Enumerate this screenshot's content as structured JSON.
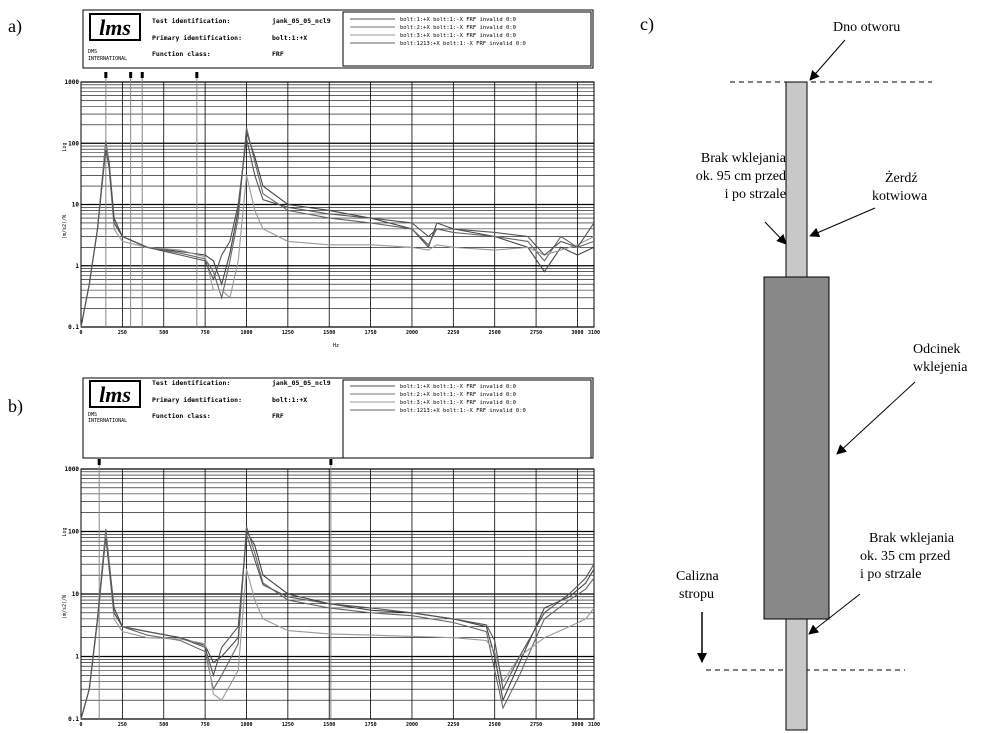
{
  "panels": [
    {
      "letter": "a)",
      "header": {
        "logo": "lms",
        "brand_line1": "DMS",
        "brand_line2": "INTERNATIONAL",
        "fields": [
          {
            "label": "Test identification:",
            "value": "jank_05_05_ncl9"
          },
          {
            "label": "Primary identification:",
            "value": "bolt:1:+X"
          },
          {
            "label": "Function class:",
            "value": "FRF"
          }
        ],
        "legend": [
          "bolt:1:+X bolt:1:-X FRF invalid 0:0",
          "bolt:2:+X bolt:1:-X FRF invalid 0:0",
          "bolt:3:+X bolt:1:-X FRF invalid 0:0",
          "bolt:1213:+X bolt:1:-X FRF invalid 0:0"
        ]
      },
      "chart_data": {
        "type": "line",
        "xlabel": "Hz",
        "ylabel": "(m/s2)/N",
        "yscale_label": "Log",
        "xlim": [
          0,
          3100
        ],
        "ylim": [
          0.1,
          1000
        ],
        "yscale": "log",
        "x_tick_labels": [
          {
            "x": 0,
            "label": "0"
          },
          {
            "x": 250,
            "label": "250"
          },
          {
            "x": 500,
            "label": "500"
          },
          {
            "x": 750,
            "label": "750"
          },
          {
            "x": 1000,
            "label": "1000"
          },
          {
            "x": 1250,
            "label": "1250"
          },
          {
            "x": 1500,
            "label": "1500"
          },
          {
            "x": 1750,
            "label": "1750"
          },
          {
            "x": 2000,
            "label": "2000"
          },
          {
            "x": 2250,
            "label": "2250"
          },
          {
            "x": 2500,
            "label": "2500"
          },
          {
            "x": 2750,
            "label": "2750"
          },
          {
            "x": 3000,
            "label": "3000"
          },
          {
            "x": 3100,
            "label": "3100"
          }
        ],
        "y_tick_labels": [
          {
            "y": 0.1,
            "label": "0.1"
          },
          {
            "y": 1,
            "label": "1"
          },
          {
            "y": 10,
            "label": "10"
          },
          {
            "y": 100,
            "label": "100"
          },
          {
            "y": 1000,
            "label": "1000"
          }
        ],
        "cursors": [
          150,
          300,
          370,
          700
        ],
        "series": [
          {
            "x": [
              0,
              50,
              100,
              150,
              170,
              200,
              250,
              400,
              600,
              750,
              800,
              850,
              900,
              950,
              1000,
              1050,
              1100,
              1250,
              1500,
              1750,
              2000,
              2100,
              2150,
              2250,
              2500,
              2700,
              2800,
              2900,
              3000,
              3100
            ],
            "y": [
              0.1,
              0.5,
              4,
              100,
              50,
              6,
              3,
              2,
              1.7,
              1.5,
              1.2,
              0.5,
              1.6,
              8,
              150,
              60,
              20,
              10,
              8,
              6,
              4,
              2,
              5,
              4,
              3,
              2,
              0.8,
              2,
              1.5,
              2
            ]
          },
          {
            "x": [
              0,
              50,
              100,
              150,
              170,
              200,
              250,
              400,
              600,
              750,
              800,
              850,
              900,
              950,
              1000,
              1050,
              1100,
              1250,
              1500,
              1750,
              2000,
              2100,
              2150,
              2250,
              2500,
              2700,
              2800,
              2900,
              3000,
              3100
            ],
            "y": [
              0.1,
              0.5,
              4,
              110,
              45,
              5,
              3,
              2,
              1.6,
              1.3,
              0.8,
              0.3,
              1.2,
              6,
              180,
              50,
              15,
              8,
              6,
              5,
              4,
              2.2,
              4,
              3.5,
              3,
              2.5,
              1.2,
              3,
              2,
              2.5
            ]
          },
          {
            "x": [
              0,
              50,
              100,
              150,
              170,
              200,
              250,
              400,
              600,
              750,
              800,
              850,
              900,
              950,
              1000,
              1050,
              1100,
              1250,
              1500,
              1750,
              2000,
              2100,
              2150,
              2250,
              2500,
              2700,
              2800,
              2900,
              3000,
              3100
            ],
            "y": [
              0.1,
              0.5,
              4,
              90,
              40,
              4,
              2.5,
              2,
              1.8,
              1.4,
              0.4,
              0.4,
              0.3,
              1.2,
              30,
              8,
              4,
              2.5,
              2.2,
              2.2,
              2,
              1.8,
              2.2,
              2,
              1.8,
              2,
              1.5,
              1.8,
              2.2,
              3
            ]
          },
          {
            "x": [
              0,
              50,
              100,
              150,
              170,
              200,
              250,
              400,
              600,
              750,
              800,
              850,
              900,
              950,
              1000,
              1050,
              1100,
              1250,
              1500,
              1750,
              2000,
              2100,
              2150,
              2250,
              2500,
              2700,
              2800,
              2900,
              3000,
              3100
            ],
            "y": [
              0.1,
              0.5,
              4,
              80,
              40,
              5,
              3,
              2,
              1.5,
              1.2,
              0.6,
              1.5,
              2.5,
              10,
              120,
              30,
              12,
              9,
              7,
              6,
              5,
              3,
              4,
              4,
              3.5,
              3,
              1.5,
              2.5,
              2,
              5
            ]
          }
        ]
      }
    },
    {
      "letter": "b)",
      "header": {
        "logo": "lms",
        "brand_line1": "DMS",
        "brand_line2": "INTERNATIONAL",
        "fields": [
          {
            "label": "Test identification:",
            "value": "jank_05_05_ncl9"
          },
          {
            "label": "Primary identification:",
            "value": "bolt:1:+X"
          },
          {
            "label": "Function class:",
            "value": "FRF"
          }
        ],
        "legend": [
          "bolt:1:+X bolt:1:-X FRF invalid 0:0",
          "bolt:2:+X bolt:1:-X FRF invalid 0:0",
          "bolt:3:+X bolt:1:-X FRF invalid 0:0",
          "bolt:1213:+X bolt:1:-X FRF invalid 0:0"
        ]
      },
      "chart_data": {
        "type": "line",
        "xlabel": "",
        "ylabel": "(m/s2)/N",
        "yscale_label": "Log",
        "xlim": [
          0,
          3100
        ],
        "ylim": [
          0.1,
          1000
        ],
        "yscale": "log",
        "x_tick_labels": [
          {
            "x": 0,
            "label": "0"
          },
          {
            "x": 250,
            "label": "250"
          },
          {
            "x": 500,
            "label": "500"
          },
          {
            "x": 750,
            "label": "750"
          },
          {
            "x": 1000,
            "label": "1000"
          },
          {
            "x": 1250,
            "label": "1250"
          },
          {
            "x": 1500,
            "label": "1500"
          },
          {
            "x": 1750,
            "label": "1750"
          },
          {
            "x": 2000,
            "label": "2000"
          },
          {
            "x": 2250,
            "label": "2250"
          },
          {
            "x": 2500,
            "label": "2500"
          },
          {
            "x": 2750,
            "label": "2750"
          },
          {
            "x": 3000,
            "label": "3000"
          },
          {
            "x": 3100,
            "label": "3100"
          }
        ],
        "y_tick_labels": [
          {
            "y": 0.1,
            "label": "0.1"
          },
          {
            "y": 1,
            "label": "1"
          },
          {
            "y": 10,
            "label": "10"
          },
          {
            "y": 100,
            "label": "100"
          },
          {
            "y": 1000,
            "label": "1000"
          }
        ],
        "cursors": [
          110,
          1510
        ],
        "series": [
          {
            "x": [
              0,
              50,
              100,
              150,
              200,
              250,
              400,
              600,
              750,
              800,
              850,
              950,
              1000,
              1050,
              1100,
              1250,
              1500,
              1750,
              2000,
              2250,
              2450,
              2500,
              2550,
              2650,
              2800,
              2950,
              3050,
              3100
            ],
            "y": [
              0.1,
              0.3,
              4,
              100,
              6,
              3,
              2.5,
              2,
              1.5,
              0.8,
              1,
              2,
              100,
              60,
              20,
              10,
              7,
              5.5,
              5,
              4,
              3,
              1,
              0.2,
              0.8,
              6,
              9,
              15,
              25
            ]
          },
          {
            "x": [
              0,
              50,
              100,
              150,
              200,
              250,
              400,
              600,
              750,
              800,
              850,
              950,
              1000,
              1050,
              1100,
              1250,
              1500,
              1750,
              2000,
              2250,
              2450,
              2500,
              2550,
              2650,
              2800,
              2950,
              3050,
              3100
            ],
            "y": [
              0.1,
              0.3,
              4,
              110,
              5,
              3,
              2.2,
              1.8,
              1.2,
              0.3,
              0.5,
              1.6,
              120,
              45,
              15,
              8,
              6,
              5,
              4.5,
              3.5,
              2.5,
              0.6,
              0.15,
              0.5,
              4,
              8,
              12,
              18
            ]
          },
          {
            "x": [
              0,
              50,
              100,
              150,
              200,
              250,
              400,
              600,
              750,
              800,
              850,
              950,
              1000,
              1050,
              1100,
              1250,
              1500,
              1750,
              2000,
              2250,
              2450,
              2500,
              2550,
              2650,
              2800,
              2950,
              3050,
              3100
            ],
            "y": [
              0.1,
              0.3,
              3.5,
              90,
              4,
              2.5,
              2,
              1.9,
              1.6,
              0.25,
              0.2,
              0.6,
              25,
              8,
              4,
              2.6,
              2.3,
              2.2,
              2.1,
              2,
              1.8,
              1.2,
              0.4,
              1,
              2,
              3,
              4,
              6
            ]
          },
          {
            "x": [
              0,
              50,
              100,
              150,
              200,
              250,
              400,
              600,
              750,
              800,
              850,
              950,
              1000,
              1050,
              1100,
              1250,
              1500,
              1750,
              2000,
              2250,
              2450,
              2500,
              2550,
              2650,
              2800,
              2950,
              3050,
              3100
            ],
            "y": [
              0.1,
              0.3,
              4,
              80,
              5,
              3,
              2.5,
              2,
              1.4,
              0.5,
              1.4,
              3,
              90,
              35,
              14,
              9,
              7,
              6,
              5,
              4,
              3.2,
              1.8,
              0.3,
              1,
              5,
              10,
              18,
              30
            ]
          }
        ]
      }
    }
  ],
  "diagram": {
    "letter": "c)",
    "labels": {
      "dno": "Dno otworu",
      "brak_top": [
        "Brak wklejania",
        "ok. 95 cm przed",
        "i po strzale"
      ],
      "zerdz": [
        "Żerdź",
        "kotwiowa"
      ],
      "odcinek": [
        "Odcinek",
        "wklejenia"
      ],
      "brak_bottom": [
        "Brak wklejania",
        "ok. 35 cm przed",
        "i po strzale"
      ],
      "calizna": [
        "Calizna",
        "stropu"
      ]
    },
    "colors": {
      "rod": "#c8c8c8",
      "glue": "#888888",
      "stroke": "#000000"
    }
  }
}
